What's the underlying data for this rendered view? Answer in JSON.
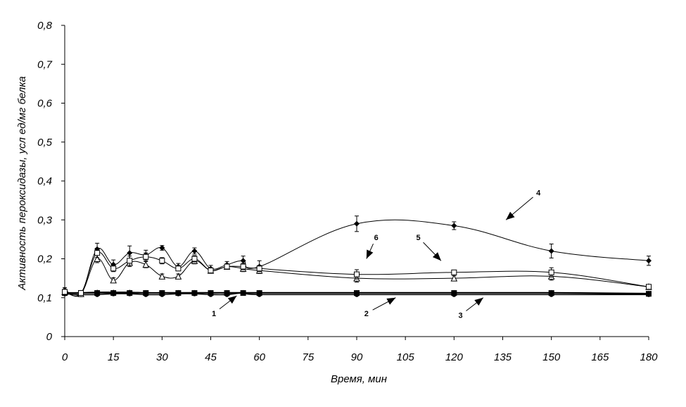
{
  "chart_data": {
    "type": "line",
    "xlabel": "Время, мин",
    "ylabel": "Активность пероксидазы, усл ед/мг белка",
    "xlim": [
      0,
      180
    ],
    "ylim": [
      0,
      0.8
    ],
    "x_ticks": [
      "0",
      "15",
      "30",
      "45",
      "60",
      "75",
      "90",
      "105",
      "120",
      "135",
      "150",
      "165",
      "180"
    ],
    "y_ticks": [
      "0",
      "0,1",
      "0,2",
      "0,3",
      "0,4",
      "0,5",
      "0,6",
      "0,7",
      "0,8"
    ],
    "grid": false,
    "legend": "none",
    "series": [
      {
        "name": "1",
        "marker": "circle",
        "x": [
          0,
          5,
          10,
          15,
          20,
          25,
          30,
          35,
          40,
          45,
          50,
          55,
          60,
          90,
          120,
          150,
          180
        ],
        "values": [
          0.11,
          0.108,
          0.108,
          0.11,
          0.11,
          0.108,
          0.108,
          0.11,
          0.11,
          0.108,
          0.108,
          0.112,
          0.108,
          0.108,
          0.108,
          0.108,
          0.108
        ]
      },
      {
        "name": "2",
        "marker": "square",
        "x": [
          0,
          5,
          10,
          15,
          20,
          25,
          30,
          35,
          40,
          45,
          50,
          55,
          60,
          90,
          120,
          150,
          180
        ],
        "values": [
          0.112,
          0.112,
          0.112,
          0.112,
          0.112,
          0.112,
          0.112,
          0.112,
          0.112,
          0.112,
          0.112,
          0.112,
          0.112,
          0.112,
          0.112,
          0.112,
          0.11
        ]
      },
      {
        "name": "3",
        "marker": "triangle",
        "x": [
          0,
          5,
          10,
          15,
          20,
          25,
          30,
          35,
          40,
          45,
          50,
          55,
          60,
          90,
          120,
          150,
          180
        ],
        "values": [
          0.113,
          0.113,
          0.114,
          0.114,
          0.114,
          0.113,
          0.113,
          0.113,
          0.113,
          0.113,
          0.113,
          0.113,
          0.113,
          0.113,
          0.113,
          0.113,
          0.111
        ]
      },
      {
        "name": "4",
        "marker": "diamond",
        "x": [
          0,
          5,
          10,
          15,
          20,
          25,
          30,
          35,
          40,
          45,
          50,
          55,
          60,
          90,
          120,
          150,
          180
        ],
        "values": [
          0.12,
          0.11,
          0.225,
          0.185,
          0.215,
          0.21,
          0.228,
          0.18,
          0.22,
          0.175,
          0.185,
          0.195,
          0.18,
          0.29,
          0.285,
          0.22,
          0.195
        ],
        "errors": [
          0.006,
          0.004,
          0.015,
          0.012,
          0.018,
          0.012,
          0.006,
          0.008,
          0.008,
          0.008,
          0.008,
          0.012,
          0.015,
          0.02,
          0.01,
          0.018,
          0.012
        ]
      },
      {
        "name": "5",
        "marker": "open-triangle",
        "x": [
          0,
          5,
          10,
          15,
          20,
          25,
          30,
          35,
          40,
          45,
          50,
          55,
          60,
          90,
          120,
          150,
          180
        ],
        "values": [
          0.115,
          0.11,
          0.2,
          0.145,
          0.19,
          0.185,
          0.155,
          0.155,
          0.195,
          0.17,
          0.18,
          0.175,
          0.17,
          0.15,
          0.15,
          0.155,
          0.128
        ],
        "errors": [
          0.004,
          0.004,
          0.01,
          0.006,
          0.01,
          0.008,
          0.006,
          0.006,
          0.008,
          0.006,
          0.006,
          0.008,
          0.008,
          0.01,
          0.006,
          0.01,
          0.004
        ]
      },
      {
        "name": "6",
        "marker": "open-square",
        "x": [
          0,
          5,
          10,
          15,
          20,
          25,
          30,
          35,
          40,
          45,
          50,
          55,
          60,
          90,
          120,
          150,
          180
        ],
        "values": [
          0.115,
          0.112,
          0.215,
          0.175,
          0.195,
          0.205,
          0.195,
          0.175,
          0.2,
          0.17,
          0.18,
          0.18,
          0.175,
          0.16,
          0.165,
          0.165,
          0.128
        ],
        "errors": [
          0.004,
          0.004,
          0.012,
          0.008,
          0.012,
          0.01,
          0.008,
          0.006,
          0.008,
          0.006,
          0.006,
          0.008,
          0.008,
          0.012,
          0.006,
          0.012,
          0.004
        ]
      }
    ],
    "annotations": [
      {
        "text": "1",
        "x": 46,
        "y": 0.06,
        "arrow_to_x": 53,
        "arrow_to_y": 0.105
      },
      {
        "text": "2",
        "x": 93,
        "y": 0.06,
        "arrow_to_x": 102,
        "arrow_to_y": 0.1
      },
      {
        "text": "3",
        "x": 122,
        "y": 0.055,
        "arrow_to_x": 129,
        "arrow_to_y": 0.1
      },
      {
        "text": "4",
        "x": 146,
        "y": 0.37,
        "arrow_to_x": 136,
        "arrow_to_y": 0.3
      },
      {
        "text": "5",
        "x": 109,
        "y": 0.255,
        "arrow_to_x": 116,
        "arrow_to_y": 0.195
      },
      {
        "text": "6",
        "x": 96,
        "y": 0.255,
        "arrow_to_x": 93,
        "arrow_to_y": 0.2
      }
    ]
  }
}
